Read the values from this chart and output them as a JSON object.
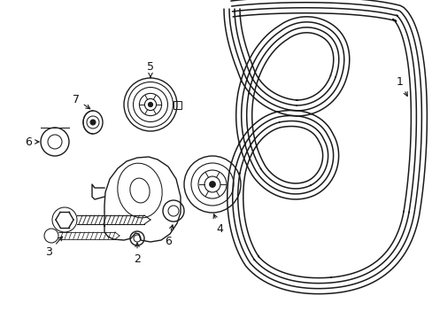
{
  "bg_color": "#ffffff",
  "line_color": "#1a1a1a",
  "label_color": "#111111",
  "figsize": [
    4.89,
    3.6
  ],
  "dpi": 100
}
